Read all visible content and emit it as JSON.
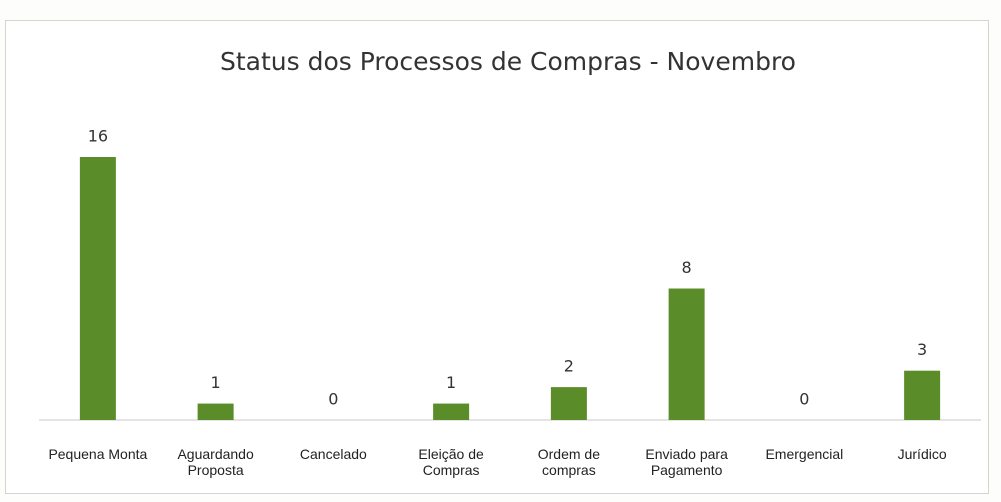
{
  "chart_data": {
    "type": "bar",
    "title": "Status dos Processos de Compras - Novembro",
    "categories": [
      "Pequena Monta",
      "Aguardando Proposta",
      "Cancelado",
      "Eleição de Compras",
      "Ordem de compras",
      "Enviado para Pagamento",
      "Emergencial",
      "Jurídico"
    ],
    "values": [
      16,
      1,
      0,
      1,
      2,
      8,
      0,
      3
    ],
    "color": "#5b8c2a"
  }
}
